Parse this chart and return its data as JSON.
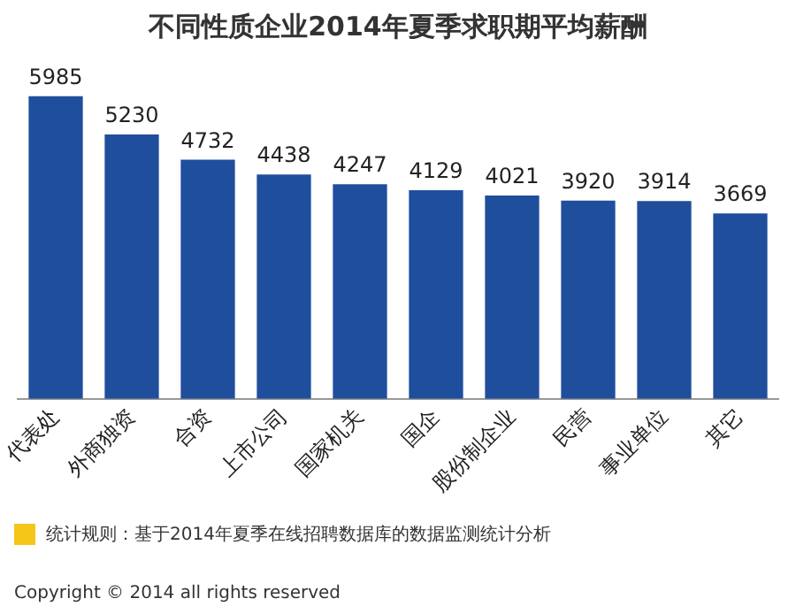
{
  "chart_data": {
    "type": "bar",
    "title": "不同性质企业2014年夏季求职期平均薪酬",
    "categories": [
      "代表处",
      "外商独资",
      "合资",
      "上市公司",
      "国家机关",
      "国企",
      "股份制企业",
      "民营",
      "事业单位",
      "其它"
    ],
    "values": [
      5985,
      5230,
      4732,
      4438,
      4247,
      4129,
      4021,
      3920,
      3914,
      3669
    ],
    "color": "#1f4e9c",
    "data_labels": true,
    "grid": false,
    "legend": false,
    "annotations": [
      "统计规则：基于2014年夏季在线招聘数据库的数据监测统计分析",
      "Copyright © 2014 all rights reserved"
    ]
  }
}
